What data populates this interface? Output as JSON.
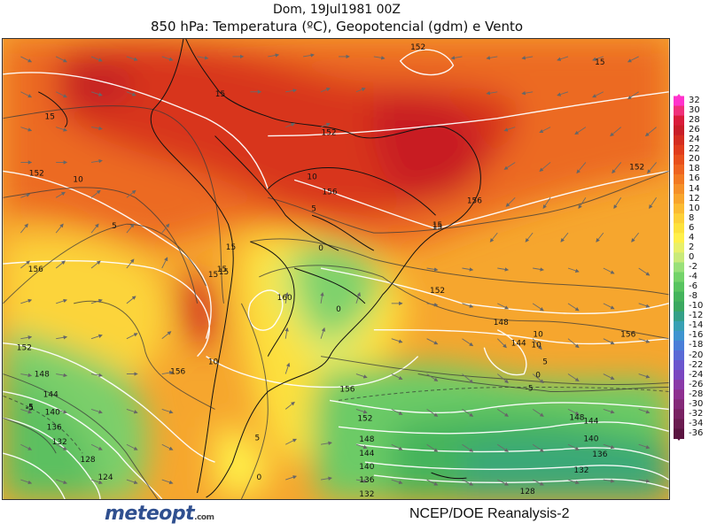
{
  "header": {
    "title": "Dom, 19Jul1981 00Z",
    "subtitle": "850 hPa: Temperatura (ºC), Geopotencial (gdm) e Vento"
  },
  "legend": {
    "labels": [
      "32",
      "30",
      "28",
      "26",
      "24",
      "22",
      "20",
      "18",
      "16",
      "14",
      "12",
      "10",
      "8",
      "6",
      "4",
      "2",
      "0",
      "-2",
      "-4",
      "-6",
      "-8",
      "-10",
      "-12",
      "-14",
      "-16",
      "-18",
      "-20",
      "-22",
      "-24",
      "-26",
      "-28",
      "-30",
      "-32",
      "-34",
      "-36"
    ],
    "colors": [
      "#ff33cc",
      "#f0307a",
      "#d91c3a",
      "#c81e28",
      "#d42d20",
      "#e03c1c",
      "#e8501c",
      "#ee6420",
      "#f27a22",
      "#f59028",
      "#f8a52c",
      "#fbbb32",
      "#fdd038",
      "#fde23c",
      "#fff04a",
      "#e8f06a",
      "#c9ea7a",
      "#99e07a",
      "#73d36a",
      "#58c460",
      "#44b45c",
      "#3aa860",
      "#34a088",
      "#38a0b4",
      "#3e94d0",
      "#4a7ed8",
      "#5a6ad6",
      "#6a56ce",
      "#7a46c0",
      "#8a3aa8",
      "#8e3090",
      "#842a78",
      "#782262",
      "#6a1c50",
      "#5a1440"
    ]
  },
  "map": {
    "geopotential_labels": [
      "152",
      "15",
      "15",
      "15",
      "152",
      "152",
      "156",
      "15",
      "156",
      "160",
      "152",
      "148",
      "144",
      "156",
      "156",
      "152",
      "152",
      "148",
      "144",
      "140",
      "136",
      "132",
      "128",
      "124",
      "148",
      "144",
      "140",
      "136",
      "132",
      "128",
      "152",
      "156",
      "148",
      "144",
      "140",
      "136",
      "132",
      "15",
      "156",
      "15",
      "15"
    ],
    "temperature_labels": [
      "10",
      "5",
      "10",
      "10",
      "5",
      "0",
      "0",
      "5",
      "0",
      "-5",
      "-5",
      "5",
      "0",
      "10",
      "15",
      "-5",
      "10",
      "15"
    ]
  },
  "footer": {
    "logo": "meteopt",
    "logo_suffix": ".com",
    "credit": "NCEP/DOE  Reanalysis-2"
  }
}
